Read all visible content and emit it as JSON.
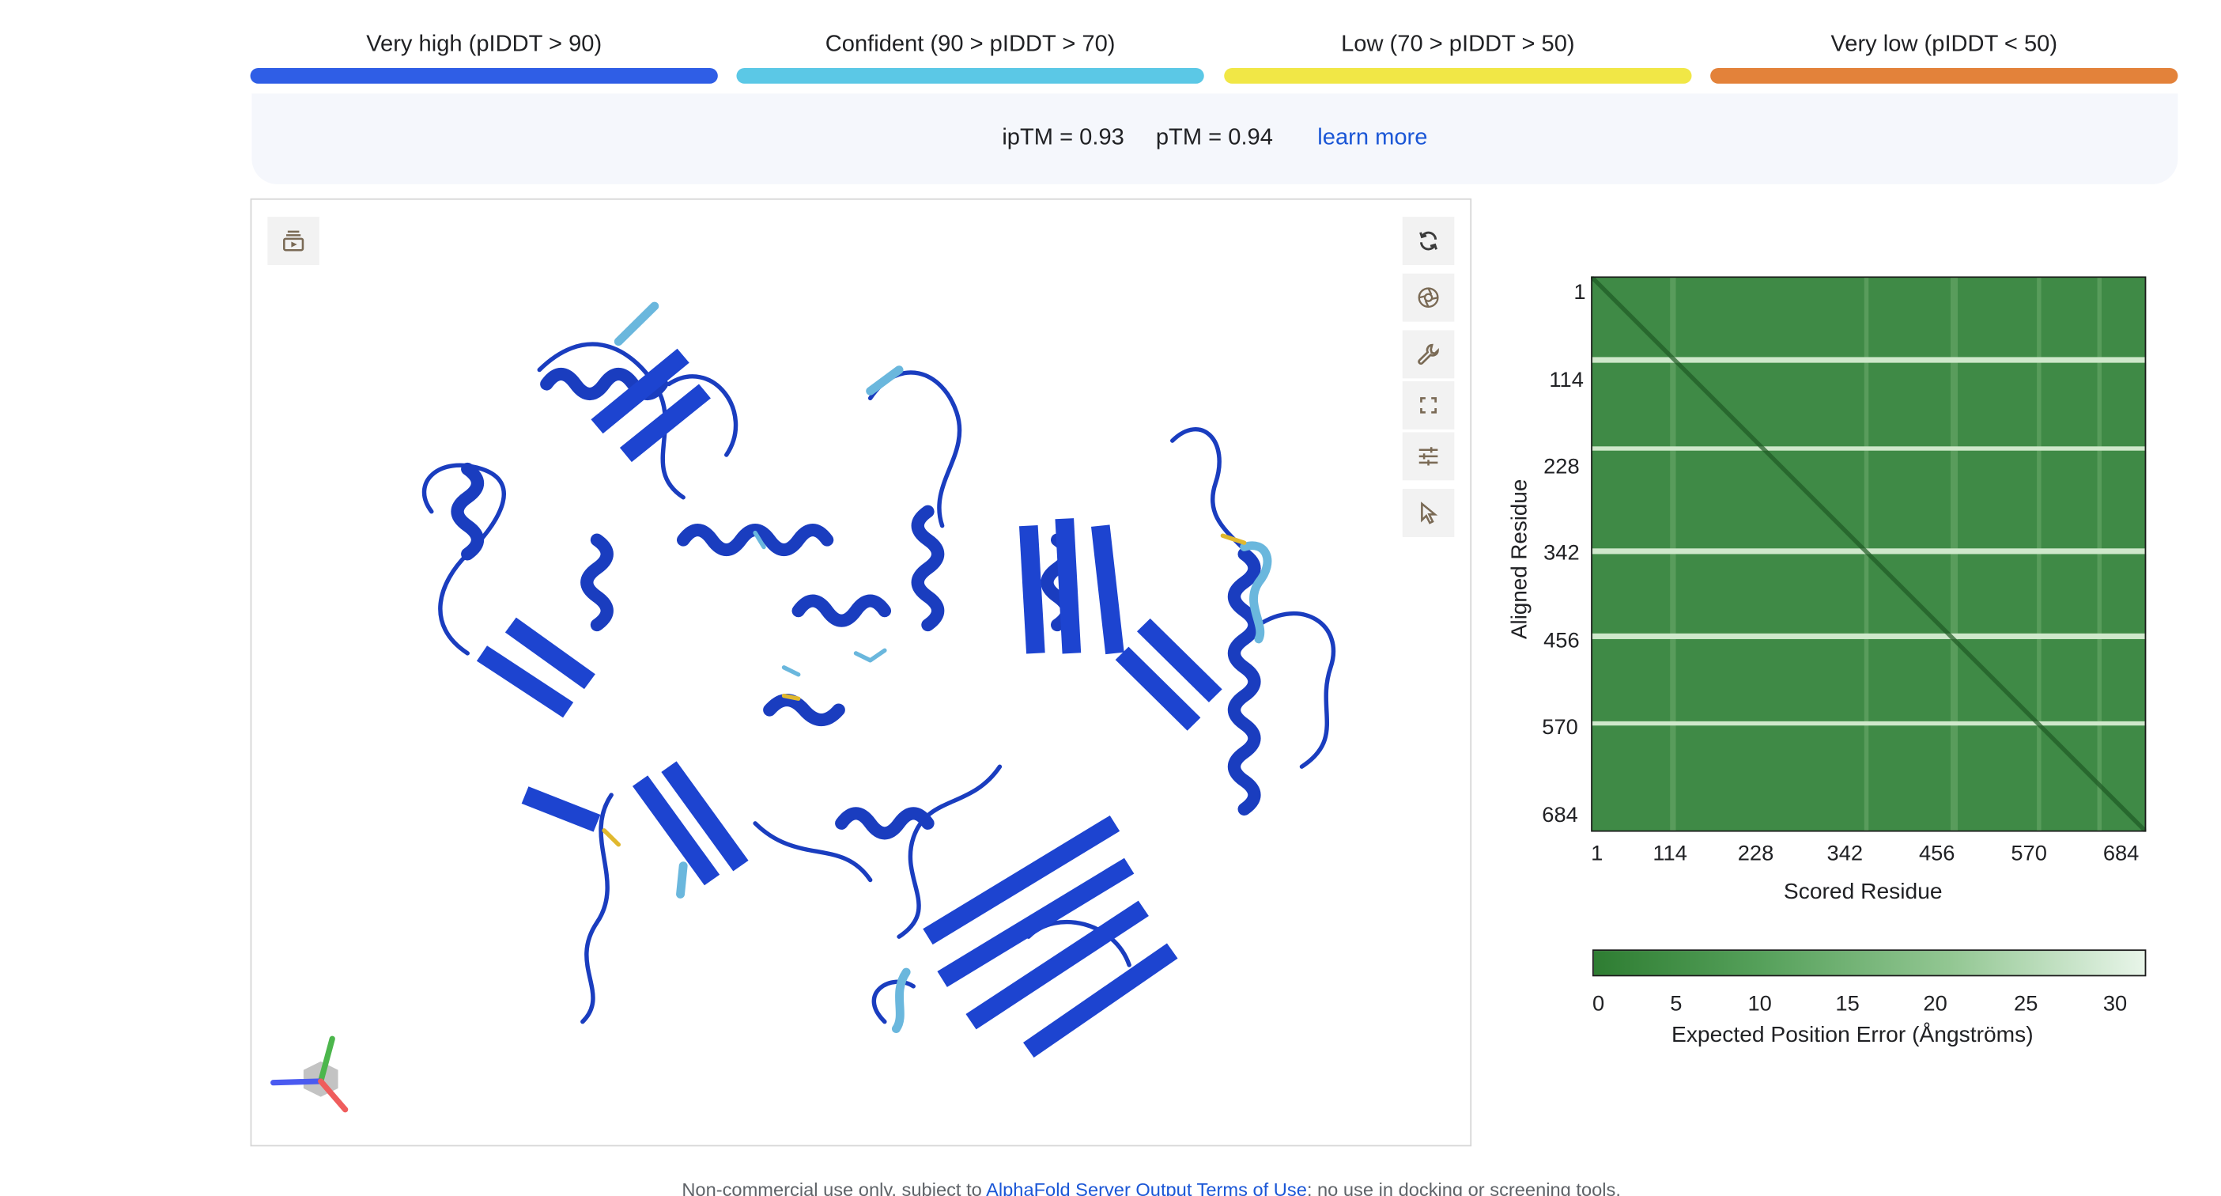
{
  "legend": [
    {
      "label": "Very high (pIDDT > 90)",
      "color": "#2f5ee6"
    },
    {
      "label": "Confident (90 > pIDDT > 70)",
      "color": "#5bc8e6"
    },
    {
      "label": "Low (70 > pIDDT > 50)",
      "color": "#f1e746"
    },
    {
      "label": "Very low (pIDDT < 50)",
      "color": "#e3823a"
    }
  ],
  "metrics": {
    "iptm": "ipTM = 0.93",
    "ptm": "pTM = 0.94",
    "learn_more": "learn more"
  },
  "viewer": {
    "toolbar_left": [
      {
        "icon": "play-sequence-icon"
      }
    ],
    "toolbar_right": [
      {
        "icon": "rotate-icon"
      },
      {
        "icon": "snapshot-icon"
      },
      {
        "icon": "wrench-icon"
      },
      {
        "icon": "fullscreen-icon"
      },
      {
        "icon": "settings-sliders-icon"
      },
      {
        "icon": "pointer-icon"
      }
    ],
    "structure_color": "#1638c4"
  },
  "pae": {
    "y_ticks": [
      "1",
      "114",
      "228",
      "342",
      "456",
      "570",
      "684"
    ],
    "x_ticks": [
      "1",
      "114",
      "228",
      "342",
      "456",
      "570",
      "684"
    ],
    "x_title": "Scored Residue",
    "y_title": "Aligned Residue",
    "colorbar_ticks": [
      "0",
      "5",
      "10",
      "15",
      "20",
      "25",
      "30"
    ],
    "colorbar_title": "Expected Position Error (Ångströms)",
    "colors": {
      "low": "#2e7d32",
      "high": "#e8f5e9"
    }
  },
  "footer": {
    "text_before": "Non-commercial use only, subject to",
    "link": "AlphaFold Server Output Terms of Use",
    "text_after": "; no use in docking or screening tools."
  }
}
